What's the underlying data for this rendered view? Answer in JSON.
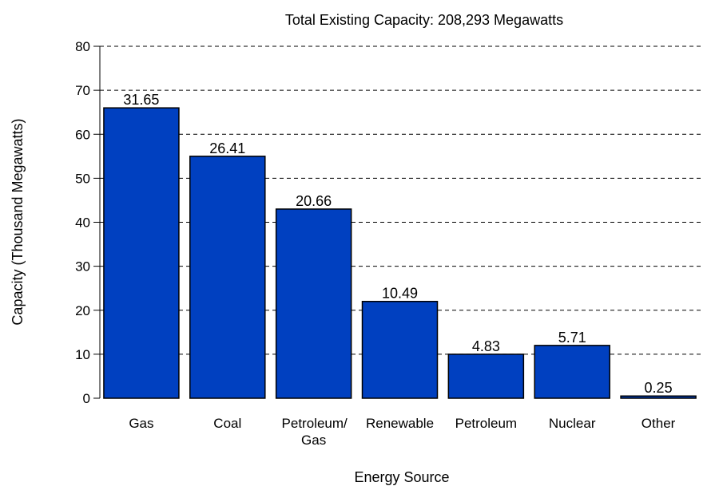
{
  "chart_data": {
    "type": "bar",
    "title": "Total Existing Capacity: 208,293 Megawatts",
    "xlabel": "Energy Source",
    "ylabel": "Capacity (Thousand Megawatts)",
    "categories": [
      "Gas",
      "Coal",
      "Petroleum/ Gas",
      "Renewable",
      "Petroleum",
      "Nuclear",
      "Other"
    ],
    "values": [
      66,
      55,
      43,
      22,
      10,
      12,
      0.5
    ],
    "data_labels": [
      "31.65",
      "26.41",
      "20.66",
      "10.49",
      "4.83",
      "5.71",
      "0.25"
    ],
    "ylim": [
      0,
      80
    ],
    "yticks": [
      "0",
      "10",
      "20",
      "30",
      "40",
      "50",
      "60",
      "70",
      "80"
    ],
    "grid": "horizontal dashed",
    "legend": "none",
    "bar_color": "#0040C0",
    "bar_outline_color": "#000000"
  }
}
